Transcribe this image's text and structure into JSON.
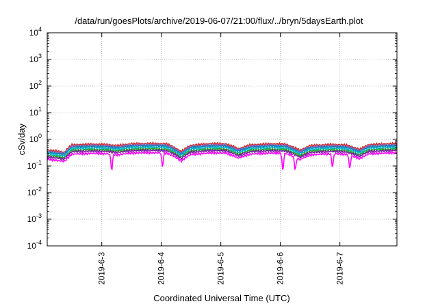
{
  "chart_data": {
    "type": "line",
    "title": "/data/run/goesPlots/archive/2019-06-07/21:00/flux/../bryn/5daysEarth.plot",
    "xlabel": "Coordinated Universal Time (UTC)",
    "ylabel": "cSv/day",
    "yscale": "log",
    "ylim": [
      0.0001,
      10000
    ],
    "xlim": [
      "2019-06-02 02:00",
      "2019-06-07 23:00"
    ],
    "grid": true,
    "x_ticks": [
      "2019-6-3",
      "2019-6-4",
      "2019-6-5",
      "2019-6-6",
      "2019-6-7"
    ],
    "y_ticks": [
      {
        "value": 0.0001,
        "base": "10",
        "exp": "-4"
      },
      {
        "value": 0.001,
        "base": "10",
        "exp": "-3"
      },
      {
        "value": 0.01,
        "base": "10",
        "exp": "-2"
      },
      {
        "value": 0.1,
        "base": "10",
        "exp": "-1"
      },
      {
        "value": 1,
        "base": "10",
        "exp": "0"
      },
      {
        "value": 10,
        "base": "10",
        "exp": "1"
      },
      {
        "value": 100,
        "base": "10",
        "exp": "2"
      },
      {
        "value": 1000,
        "base": "10",
        "exp": "3"
      },
      {
        "value": 10000,
        "base": "10",
        "exp": "4"
      }
    ],
    "profile": {
      "x": [
        "2019-06-02 02:00",
        "2019-06-02 09:00",
        "2019-06-02 12:00",
        "2019-06-02 20:00",
        "2019-06-03 02:00",
        "2019-06-03 06:00",
        "2019-06-03 12:00",
        "2019-06-03 20:00",
        "2019-06-04 02:00",
        "2019-06-04 08:00",
        "2019-06-04 12:00",
        "2019-06-04 20:00",
        "2019-06-05 02:00",
        "2019-06-05 07:00",
        "2019-06-05 12:00",
        "2019-06-05 20:00",
        "2019-06-06 02:00",
        "2019-06-06 08:00",
        "2019-06-06 12:00",
        "2019-06-06 20:00",
        "2019-06-07 02:00",
        "2019-06-07 08:00",
        "2019-06-07 12:00",
        "2019-06-07 23:00"
      ],
      "relative": [
        1.0,
        0.82,
        1.55,
        1.65,
        1.6,
        1.45,
        1.7,
        1.75,
        1.7,
        0.85,
        1.5,
        1.72,
        1.7,
        1.1,
        1.55,
        1.7,
        1.65,
        0.95,
        1.45,
        1.6,
        1.55,
        1.05,
        1.6,
        1.75
      ]
    },
    "series": [
      {
        "color": "#d62728",
        "base": 0.4
      },
      {
        "color": "#9467bd",
        "base": 0.36
      },
      {
        "color": "#1f77b4",
        "base": 0.33
      },
      {
        "color": "#00bcd4",
        "base": 0.29
      },
      {
        "color": "#2ca02c",
        "base": 0.25
      },
      {
        "color": "#7b1fa2",
        "base": 0.22
      },
      {
        "color": "#ff00ff",
        "base": 0.18
      }
    ],
    "dips": [
      {
        "x": "2019-06-03 04:00",
        "value": 0.035
      },
      {
        "x": "2019-06-04 00:30",
        "value": 0.07
      },
      {
        "x": "2019-06-06 01:00",
        "value": 0.03
      },
      {
        "x": "2019-06-06 06:00",
        "value": 0.05
      },
      {
        "x": "2019-06-06 21:00",
        "value": 0.06
      },
      {
        "x": "2019-06-07 04:00",
        "value": 0.06
      }
    ]
  }
}
